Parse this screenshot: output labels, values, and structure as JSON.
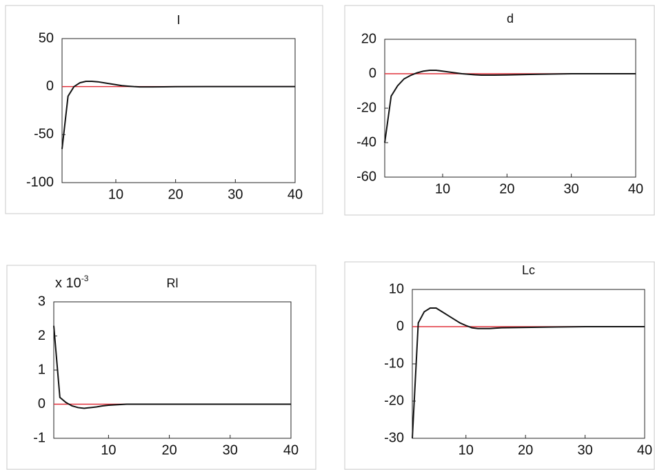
{
  "chart_data": [
    {
      "type": "line",
      "title": "I",
      "x": [
        1,
        2,
        3,
        4,
        5,
        6,
        7,
        8,
        9,
        10,
        11,
        12,
        13,
        14,
        15,
        16,
        18,
        20,
        25,
        30,
        35,
        40
      ],
      "values": [
        -65,
        -10,
        0,
        4,
        5.5,
        5.5,
        5,
        4,
        3,
        2,
        1,
        0.5,
        0,
        -0.3,
        -0.3,
        -0.3,
        -0.2,
        -0.1,
        0,
        0,
        0,
        0
      ],
      "color": "#111111",
      "reference_line": {
        "value": 0,
        "color": "#e0303a"
      },
      "xlim": [
        1,
        40
      ],
      "xticks": [
        10,
        20,
        30,
        40
      ],
      "ylim": [
        -100,
        50
      ],
      "yticks": [
        -100,
        -50,
        0,
        50
      ]
    },
    {
      "type": "line",
      "title": "d",
      "x": [
        1,
        2,
        3,
        4,
        5,
        6,
        7,
        8,
        9,
        10,
        11,
        12,
        13,
        14,
        15,
        16,
        18,
        20,
        25,
        30,
        35,
        40
      ],
      "values": [
        -40,
        -13,
        -7,
        -3,
        -1,
        0.5,
        1.5,
        2,
        2,
        1.5,
        1,
        0.5,
        0,
        -0.3,
        -0.6,
        -0.8,
        -0.8,
        -0.7,
        -0.3,
        0,
        0,
        0
      ],
      "color": "#111111",
      "reference_line": {
        "value": 0,
        "color": "#e0303a"
      },
      "xlim": [
        1,
        40
      ],
      "xticks": [
        10,
        20,
        30,
        40
      ],
      "ylim": [
        -60,
        20
      ],
      "yticks": [
        -60,
        -40,
        -20,
        0,
        20
      ]
    },
    {
      "type": "line",
      "title": "Rl",
      "y_multiplier": {
        "base": "x 10",
        "exponent": "-3"
      },
      "x": [
        1,
        2,
        3,
        4,
        5,
        6,
        7,
        8,
        9,
        10,
        11,
        12,
        13,
        14,
        15,
        16,
        18,
        20,
        25,
        30,
        35,
        40
      ],
      "values": [
        2.3,
        0.2,
        0.05,
        -0.05,
        -0.1,
        -0.12,
        -0.1,
        -0.08,
        -0.05,
        -0.03,
        -0.02,
        -0.01,
        0,
        0,
        0,
        0,
        0,
        0,
        0,
        0,
        0,
        0
      ],
      "color": "#111111",
      "reference_line": {
        "value": 0,
        "color": "#e0303a"
      },
      "xlim": [
        1,
        40
      ],
      "xticks": [
        10,
        20,
        30,
        40
      ],
      "ylim": [
        -1,
        3
      ],
      "yticks": [
        -1,
        0,
        1,
        2,
        3
      ]
    },
    {
      "type": "line",
      "title": "Lc",
      "x": [
        1,
        2,
        3,
        4,
        5,
        6,
        7,
        8,
        9,
        10,
        11,
        12,
        13,
        14,
        15,
        16,
        18,
        20,
        25,
        30,
        35,
        40
      ],
      "values": [
        -30,
        1,
        4,
        5,
        5,
        4,
        3,
        2,
        1,
        0.3,
        -0.3,
        -0.5,
        -0.5,
        -0.5,
        -0.4,
        -0.3,
        -0.25,
        -0.2,
        -0.1,
        0,
        0,
        0
      ],
      "color": "#111111",
      "reference_line": {
        "value": 0,
        "color": "#e0303a"
      },
      "xlim": [
        1,
        40
      ],
      "xticks": [
        10,
        20,
        30,
        40
      ],
      "ylim": [
        -30,
        10
      ],
      "yticks": [
        -30,
        -20,
        -10,
        0,
        10
      ]
    }
  ]
}
